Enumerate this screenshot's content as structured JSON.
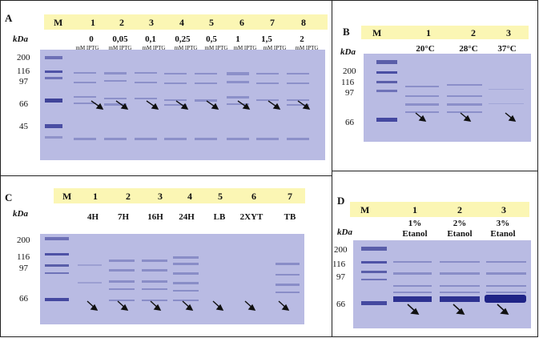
{
  "panels": {
    "a": {
      "label": "A",
      "lanes": [
        "M",
        "1",
        "2",
        "3",
        "4",
        "5",
        "6",
        "7",
        "8"
      ],
      "conditions": [
        "0",
        "0,05",
        "0,1",
        "0,25",
        "0,5",
        "1",
        "1,5",
        "2"
      ],
      "condition_unit": "mM IPTG",
      "kda_label": "kDa",
      "markers": [
        "200",
        "116",
        "97",
        "66",
        "45"
      ]
    },
    "b": {
      "label": "B",
      "lanes": [
        "M",
        "1",
        "2",
        "3"
      ],
      "conditions": [
        "20°C",
        "28°C",
        "37°C"
      ],
      "kda_label": "kDa",
      "markers": [
        "200",
        "116",
        "97",
        "66"
      ]
    },
    "c": {
      "label": "C",
      "lanes": [
        "M",
        "1",
        "2",
        "3",
        "4",
        "5",
        "6",
        "7"
      ],
      "conditions": [
        "4H",
        "7H",
        "16H",
        "24H",
        "LB",
        "2XYT",
        "TB"
      ],
      "kda_label": "kDa",
      "markers": [
        "200",
        "116",
        "97",
        "66"
      ]
    },
    "d": {
      "label": "D",
      "lanes": [
        "M",
        "1",
        "2",
        "3"
      ],
      "conditions_top": [
        "1%",
        "2%",
        "3%"
      ],
      "conditions_bottom": [
        "Etanol",
        "Etanol",
        "Etanol"
      ],
      "kda_label": "kDa",
      "markers": [
        "200",
        "116",
        "97",
        "66"
      ]
    }
  },
  "colors": {
    "header_bar": "#fbf6b4",
    "gel": "#b9bbe3",
    "band": "#5a5fae"
  }
}
